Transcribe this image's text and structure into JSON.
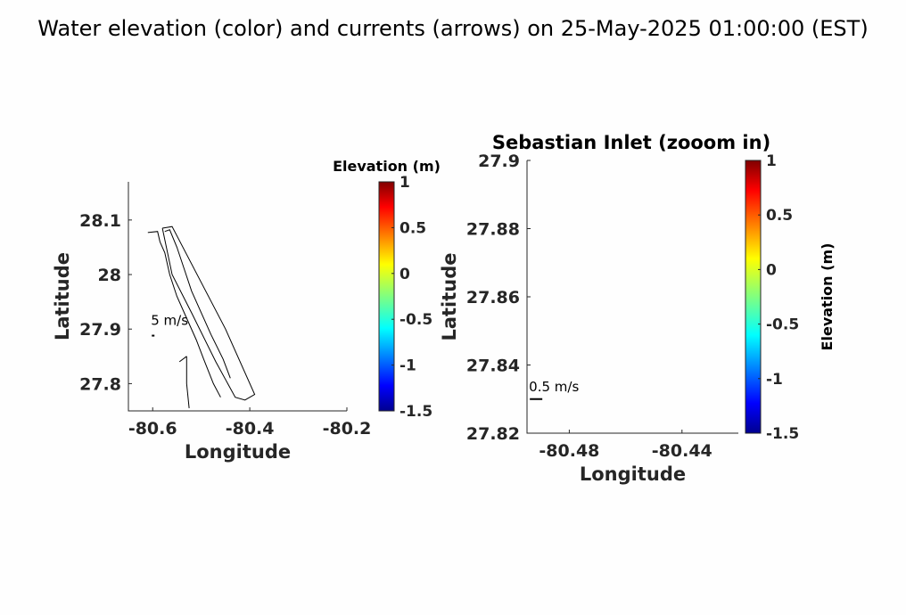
{
  "figure": {
    "title": "Water elevation (color) and currents (arrows) on 25-May-2025 01:00:00 (EST)"
  },
  "chart_data": [
    {
      "type": "map",
      "panel": "overview",
      "xlabel": "Longitude",
      "ylabel": "Latitude",
      "xlim": [
        -80.65,
        -80.2
      ],
      "ylim": [
        27.75,
        28.17
      ],
      "xticks": [
        -80.6,
        -80.4,
        -80.2
      ],
      "xtick_labels": [
        "-80.6",
        "-80.4",
        "-80.2"
      ],
      "yticks": [
        27.8,
        27.9,
        28.0,
        28.1
      ],
      "ytick_labels": [
        "27.8",
        "27.9",
        "28",
        "28.1"
      ],
      "grid": false,
      "scale_arrow_label": "5 m/s",
      "scale_arrow_position": [
        -80.6,
        27.888
      ],
      "coastline": [
        [
          [
            -80.61,
            28.077
          ],
          [
            -80.59,
            28.079
          ],
          [
            -80.585,
            28.06
          ],
          [
            -80.575,
            28.04
          ],
          [
            -80.565,
            28.0
          ],
          [
            -80.55,
            27.96
          ],
          [
            -80.53,
            27.92
          ],
          [
            -80.51,
            27.88
          ],
          [
            -80.495,
            27.845
          ],
          [
            -80.475,
            27.8
          ],
          [
            -80.46,
            27.775
          ]
        ],
        [
          [
            -80.575,
            28.079
          ],
          [
            -80.565,
            28.082
          ],
          [
            -80.55,
            28.05
          ],
          [
            -80.535,
            28.01
          ],
          [
            -80.52,
            27.97
          ],
          [
            -80.5,
            27.93
          ],
          [
            -80.48,
            27.89
          ],
          [
            -80.455,
            27.845
          ],
          [
            -80.44,
            27.81
          ]
        ],
        [
          [
            -80.58,
            28.085
          ],
          [
            -80.56,
            28.088
          ],
          [
            -80.45,
            27.9
          ],
          [
            -80.39,
            27.78
          ],
          [
            -80.41,
            27.77
          ],
          [
            -80.43,
            27.775
          ],
          [
            -80.47,
            27.84
          ],
          [
            -80.52,
            27.93
          ],
          [
            -80.56,
            28.0
          ],
          [
            -80.58,
            28.085
          ]
        ],
        [
          [
            -80.53,
            27.85
          ],
          [
            -80.53,
            27.8
          ],
          [
            -80.525,
            27.755
          ]
        ],
        [
          [
            -80.545,
            27.84
          ],
          [
            -80.53,
            27.85
          ]
        ]
      ],
      "colorbar": {
        "label": "Elevation (m)",
        "min": -1.5,
        "max": 1,
        "ticks": [
          1,
          0.5,
          0,
          -0.5,
          -1,
          -1.5
        ],
        "tick_labels": [
          "1",
          "0.5",
          "0",
          "-0.5",
          "-1",
          "-1.5"
        ],
        "colormap": "jet",
        "label_position": "top"
      }
    },
    {
      "type": "map",
      "panel": "zoom",
      "title": "Sebastian Inlet (zooom in)",
      "xlabel": "Longitude",
      "ylabel": "Latitude",
      "xlim": [
        -80.495,
        -80.42
      ],
      "ylim": [
        27.82,
        27.9
      ],
      "xticks": [
        -80.48,
        -80.44
      ],
      "xtick_labels": [
        "-80.48",
        "-80.44"
      ],
      "yticks": [
        27.82,
        27.84,
        27.86,
        27.88,
        27.9
      ],
      "ytick_labels": [
        "27.82",
        "27.84",
        "27.86",
        "27.88",
        "27.9"
      ],
      "grid": false,
      "scale_arrow_label": "0.5 m/s",
      "scale_arrow_position": [
        -80.494,
        27.83
      ],
      "colorbar": {
        "label": "Elevation (m)",
        "min": -1.5,
        "max": 1,
        "ticks": [
          1,
          0.5,
          0,
          -0.5,
          -1,
          -1.5
        ],
        "tick_labels": [
          "1",
          "0.5",
          "0",
          "-0.5",
          "-1",
          "-1.5"
        ],
        "colormap": "jet",
        "label_position": "right"
      }
    }
  ]
}
